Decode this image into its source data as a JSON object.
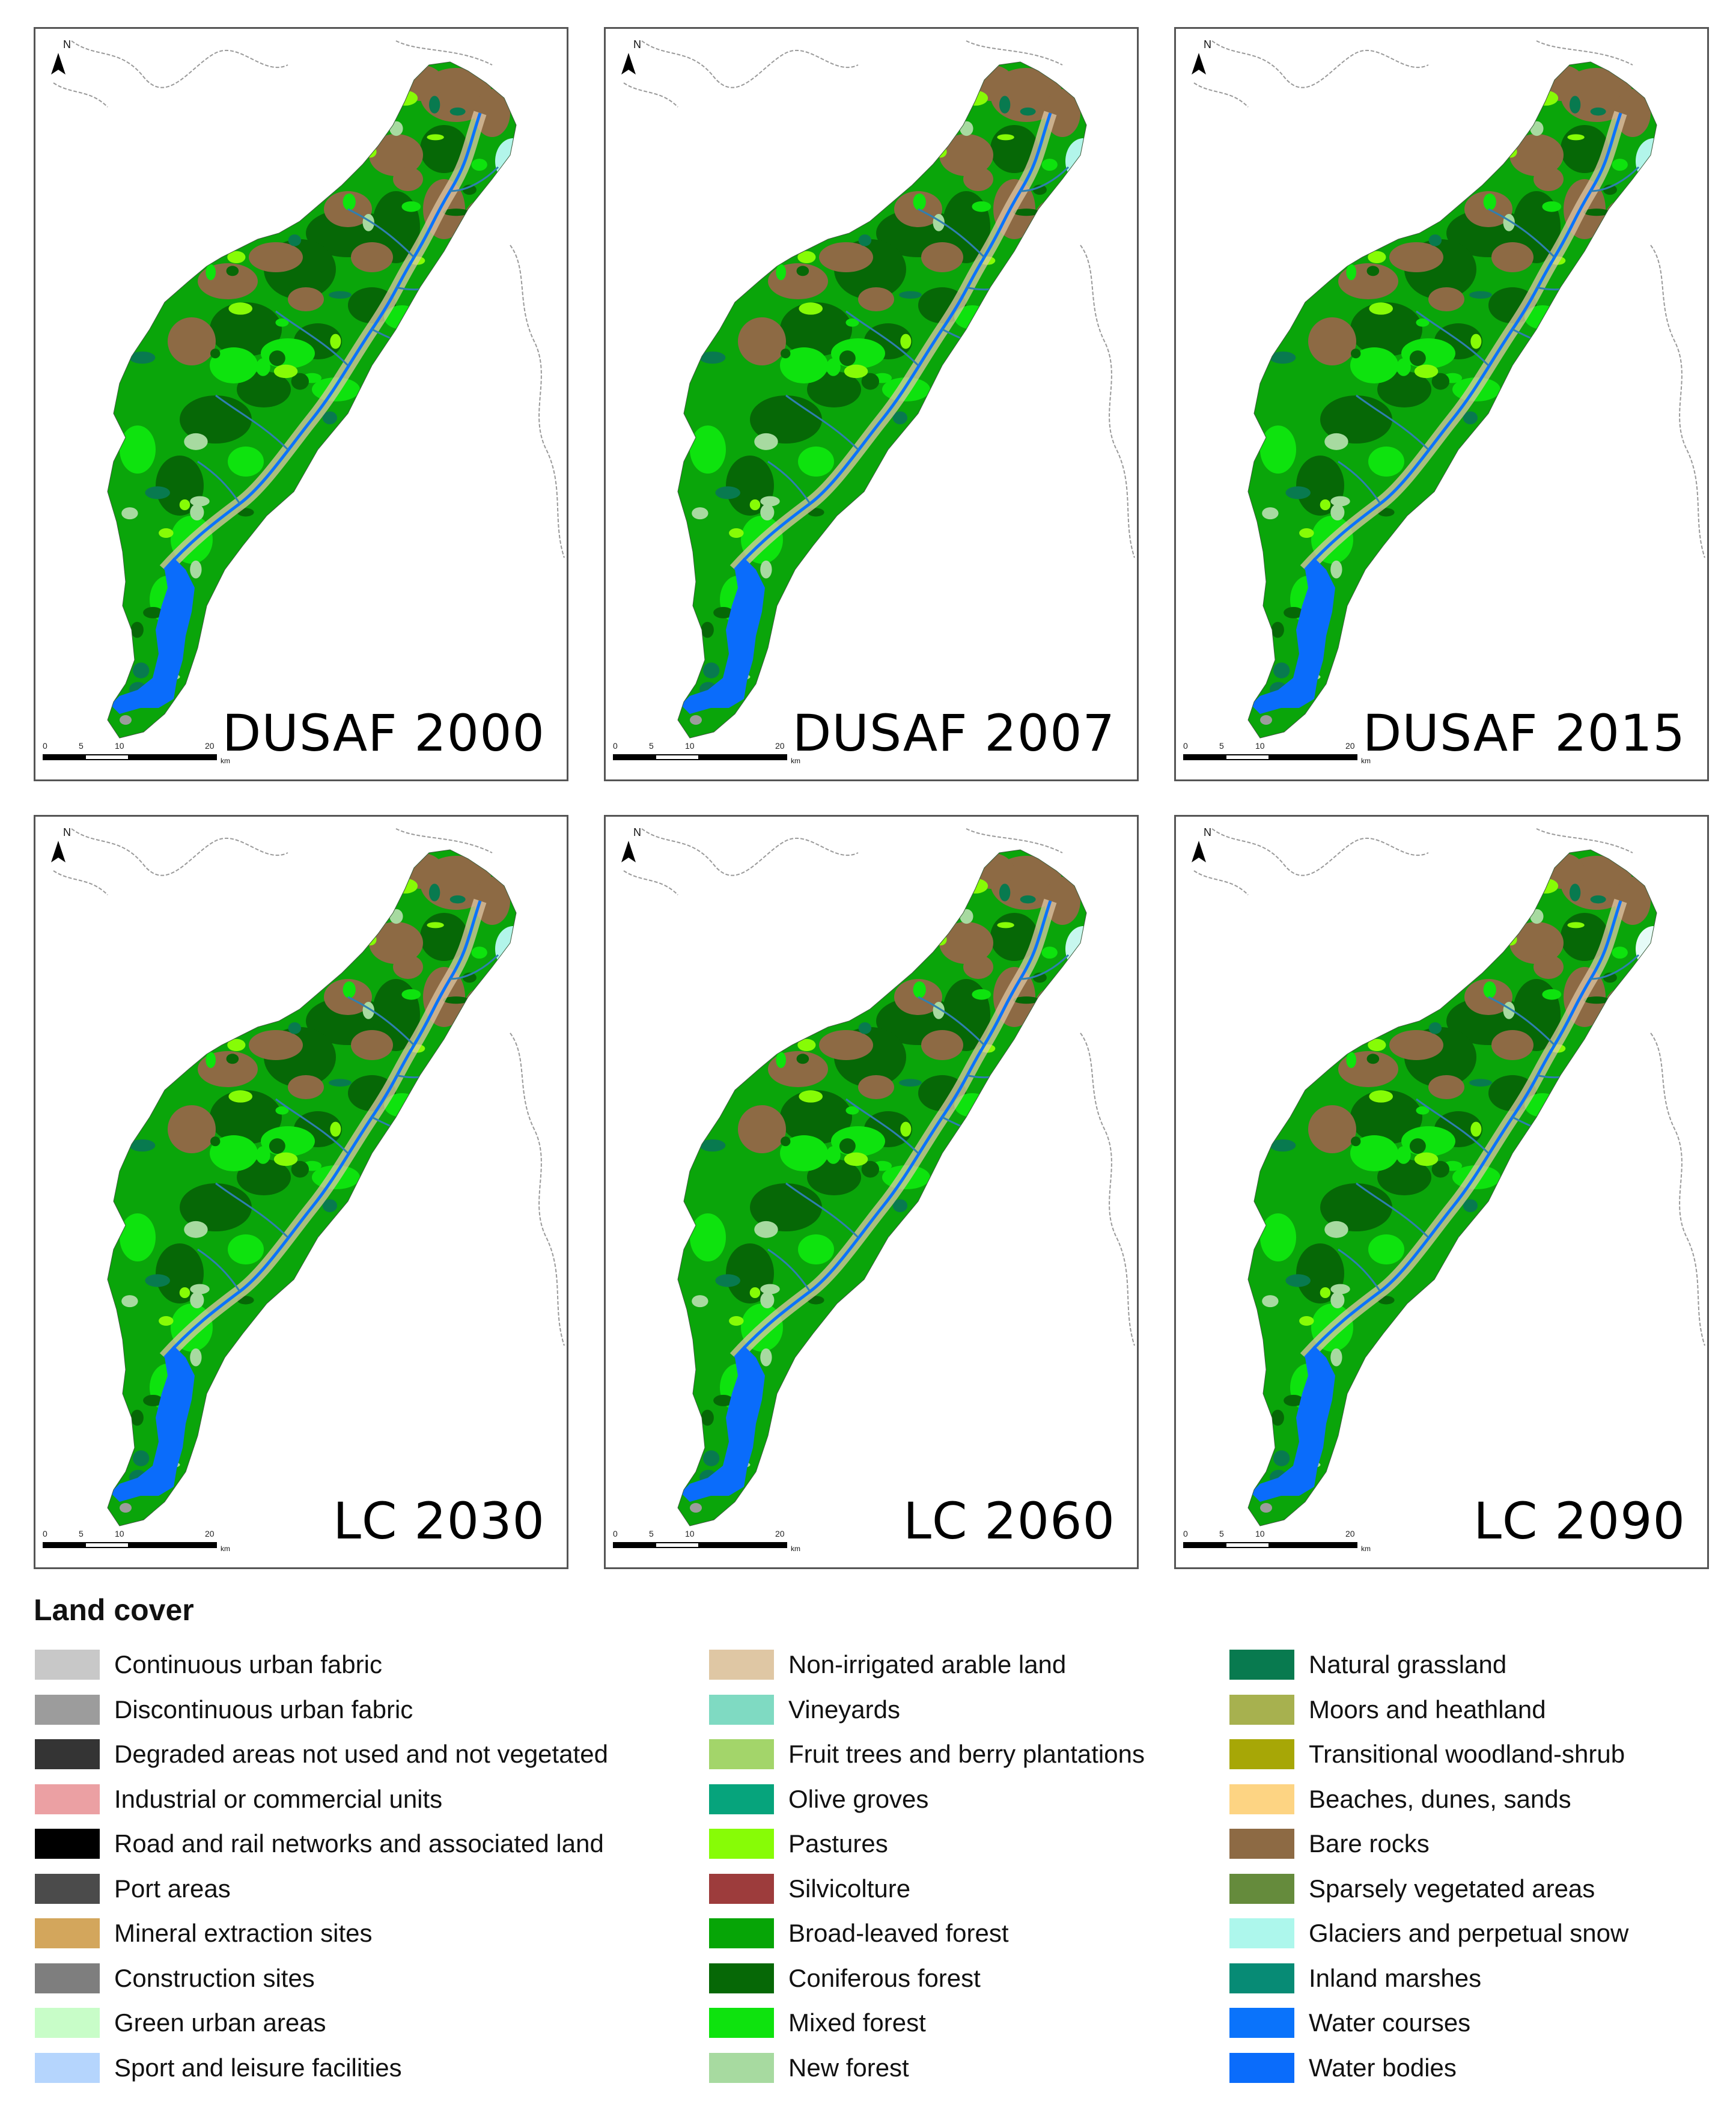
{
  "panels": [
    {
      "title": "DUSAF 2000",
      "glacier": "#b2f5ea",
      "north": "N",
      "scale_ticks": [
        "0",
        "5",
        "10",
        "20"
      ],
      "scale_unit": "km"
    },
    {
      "title": "DUSAF 2007",
      "glacier": "#b2f5ea",
      "north": "N",
      "scale_ticks": [
        "0",
        "5",
        "10",
        "20"
      ],
      "scale_unit": "km"
    },
    {
      "title": "DUSAF 2015",
      "glacier": "#b2f5ea",
      "north": "N",
      "scale_ticks": [
        "0",
        "5",
        "10",
        "20"
      ],
      "scale_unit": "km"
    },
    {
      "title": "LC 2030",
      "glacier": "#b2f5ea",
      "north": "N",
      "scale_ticks": [
        "0",
        "5",
        "10",
        "20"
      ],
      "scale_unit": "km"
    },
    {
      "title": "LC 2060",
      "glacier": "#c7f7ee",
      "north": "N",
      "scale_ticks": [
        "0",
        "5",
        "10",
        "20"
      ],
      "scale_unit": "km"
    },
    {
      "title": "LC 2090",
      "glacier": "#e6fbf7",
      "north": "N",
      "scale_ticks": [
        "0",
        "5",
        "10",
        "20"
      ],
      "scale_unit": "km"
    }
  ],
  "legend": {
    "title": "Land cover",
    "columns": [
      [
        {
          "label": "Continuous urban fabric",
          "color": "#c8c8c8"
        },
        {
          "label": "Discontinuous urban fabric",
          "color": "#9c9c9c"
        },
        {
          "label": "Degraded areas not used and not vegetated",
          "color": "#343434"
        },
        {
          "label": "Industrial or commercial units",
          "color": "#eba0a3"
        },
        {
          "label": "Road and rail networks and associated land",
          "color": "#000000"
        },
        {
          "label": "Port areas",
          "color": "#4b4b4b"
        },
        {
          "label": "Mineral extraction sites",
          "color": "#d3a65c"
        },
        {
          "label": "Construction sites",
          "color": "#7e7e7e"
        },
        {
          "label": "Green urban areas",
          "color": "#c8fdc8"
        },
        {
          "label": "Sport and leisure facilities",
          "color": "#b5d5fd"
        }
      ],
      [
        {
          "label": "Non-irrigated arable land",
          "color": "#dfc7a4"
        },
        {
          "label": "Vineyards",
          "color": "#7fdac2"
        },
        {
          "label": "Fruit trees and berry plantations",
          "color": "#a3d56a"
        },
        {
          "label": "Olive groves",
          "color": "#06a47c"
        },
        {
          "label": "Pastures",
          "color": "#87fc06"
        },
        {
          "label": "Silvicolture",
          "color": "#9d3c3c"
        },
        {
          "label": "Broad-leaved forest",
          "color": "#06a506"
        },
        {
          "label": "Coniferous forest",
          "color": "#066806"
        },
        {
          "label": "Mixed forest",
          "color": "#0ee30e"
        },
        {
          "label": "New forest",
          "color": "#a7daa0"
        }
      ],
      [
        {
          "label": "Natural grassland",
          "color": "#087a4f"
        },
        {
          "label": "Moors and heathland",
          "color": "#a7b14f"
        },
        {
          "label": "Transitional woodland-shrub",
          "color": "#a7a706"
        },
        {
          "label": "Beaches, dunes, sands",
          "color": "#fdd483"
        },
        {
          "label": "Bare rocks",
          "color": "#8d6a44"
        },
        {
          "label": "Sparsely vegetated areas",
          "color": "#658b3c"
        },
        {
          "label": "Glaciers and perpetual snow",
          "color": "#adf7ec"
        },
        {
          "label": "Inland marshes",
          "color": "#078b75"
        },
        {
          "label": "Water courses",
          "color": "#0a73fb"
        },
        {
          "label": "Water bodies",
          "color": "#0a6cfb"
        }
      ]
    ]
  }
}
